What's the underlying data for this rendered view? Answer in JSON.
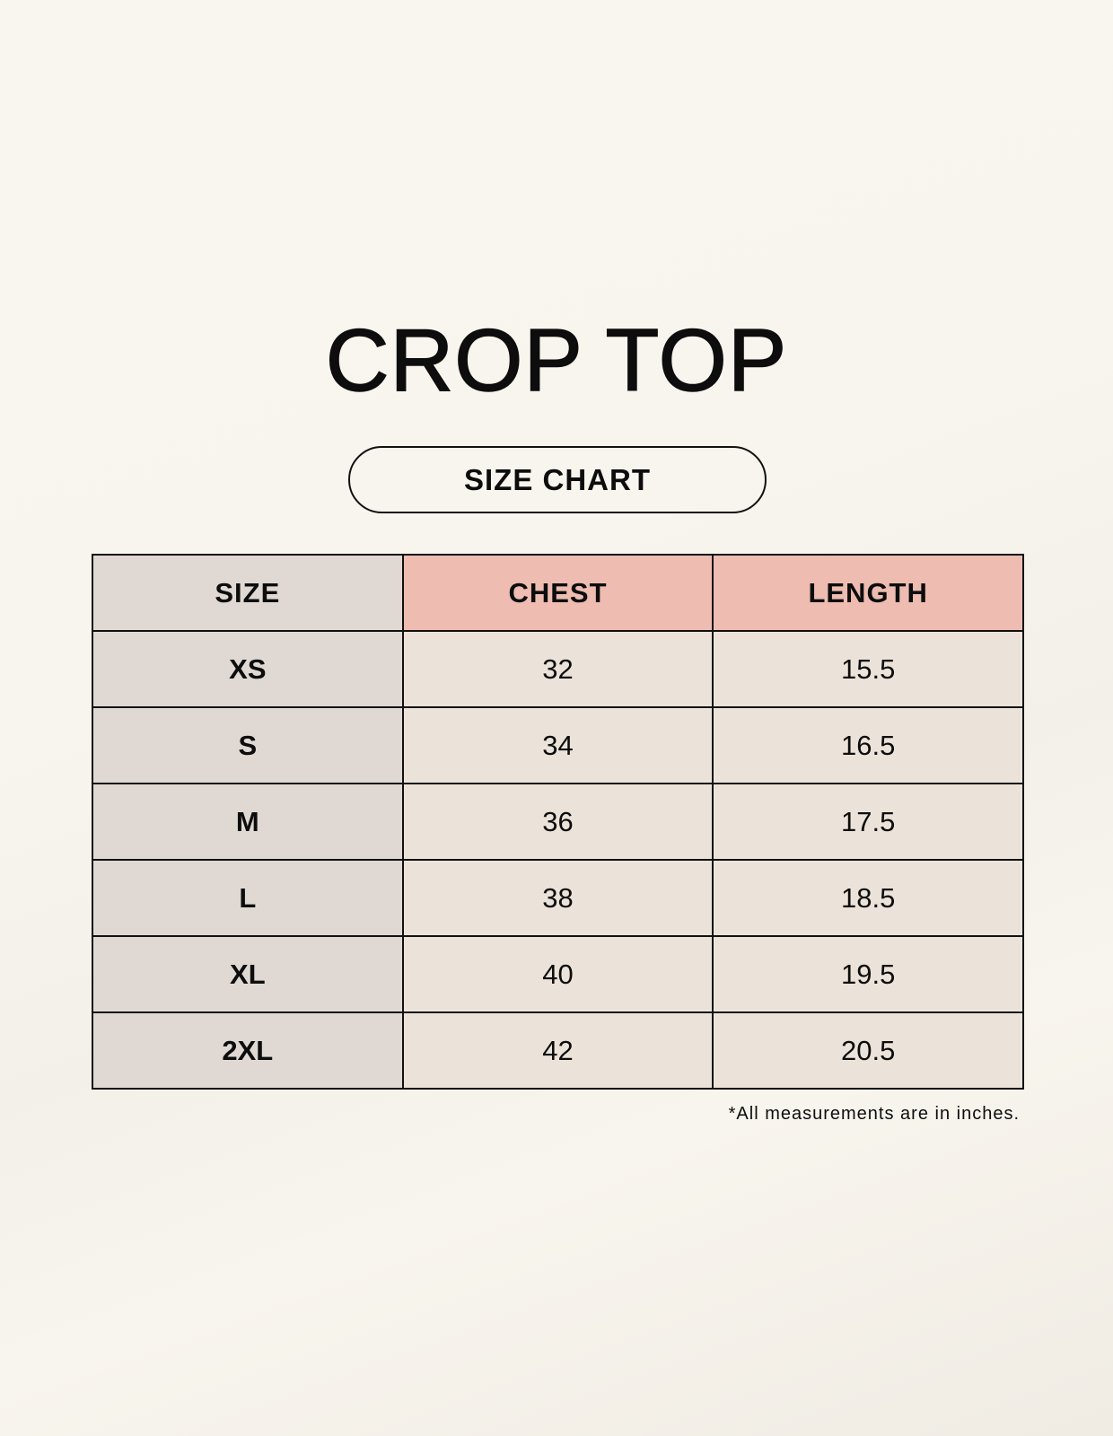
{
  "title": "CROP TOP",
  "subtitle": "SIZE CHART",
  "table": {
    "headers": [
      "SIZE",
      "CHEST",
      "LENGTH"
    ],
    "rows": [
      [
        "XS",
        "32",
        "15.5"
      ],
      [
        "S",
        "34",
        "16.5"
      ],
      [
        "M",
        "36",
        "17.5"
      ],
      [
        "L",
        "38",
        "18.5"
      ],
      [
        "XL",
        "40",
        "19.5"
      ],
      [
        "2XL",
        "42",
        "20.5"
      ]
    ]
  },
  "footnote": "*All measurements are in inches.",
  "colors": {
    "header_size": "#e0d9d3",
    "header_measure": "#eebcb0",
    "cell_size": "#e0d9d3",
    "cell_value": "#ebe3d9"
  }
}
